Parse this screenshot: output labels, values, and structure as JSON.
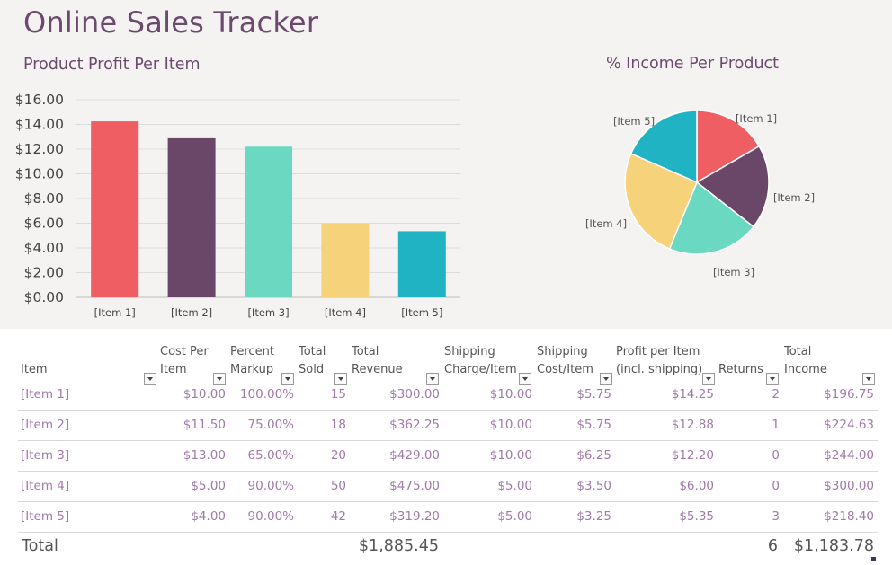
{
  "app": {
    "title": "Online Sales Tracker"
  },
  "bar_title": "Product Profit Per Item",
  "pie_title": "% Income Per Product",
  "chart_data": [
    {
      "type": "bar",
      "title": "Product Profit Per Item",
      "categories": [
        "[Item 1]",
        "[Item 2]",
        "[Item 3]",
        "[Item 4]",
        "[Item 5]"
      ],
      "values": [
        14.25,
        12.88,
        12.2,
        6.0,
        5.35
      ],
      "colors": [
        "#ef5e62",
        "#6a4768",
        "#6bd8c2",
        "#f6d27a",
        "#20b3c4"
      ],
      "ylim": [
        0,
        16
      ],
      "yticks": [
        "$0.00",
        "$2.00",
        "$4.00",
        "$6.00",
        "$8.00",
        "$10.00",
        "$12.00",
        "$14.00",
        "$16.00"
      ],
      "grid": true
    },
    {
      "type": "pie",
      "title": "% Income Per Product",
      "labels": [
        "[Item 1]",
        "[Item 2]",
        "[Item 3]",
        "[Item 4]",
        "[Item 5]"
      ],
      "values": [
        196.75,
        224.63,
        244.0,
        300.0,
        218.4
      ],
      "colors": [
        "#ef5e62",
        "#6a4768",
        "#6bd8c2",
        "#f6d27a",
        "#20b3c4"
      ]
    }
  ],
  "table": {
    "headers": [
      {
        "l1": "",
        "l2": "Item"
      },
      {
        "l1": "Cost Per",
        "l2": "Item"
      },
      {
        "l1": "Percent",
        "l2": "Markup"
      },
      {
        "l1": "Total",
        "l2": "Sold"
      },
      {
        "l1": "Total",
        "l2": "Revenue"
      },
      {
        "l1": "Shipping",
        "l2": "Charge/Item"
      },
      {
        "l1": "Shipping",
        "l2": "Cost/Item"
      },
      {
        "l1": "Profit per Item",
        "l2": "(incl. shipping)"
      },
      {
        "l1": "",
        "l2": "Returns"
      },
      {
        "l1": "Total",
        "l2": "Income"
      }
    ],
    "rows": [
      [
        "[Item 1]",
        "$10.00",
        "100.00%",
        "15",
        "$300.00",
        "$10.00",
        "$5.75",
        "$14.25",
        "2",
        "$196.75"
      ],
      [
        "[Item 2]",
        "$11.50",
        "75.00%",
        "18",
        "$362.25",
        "$10.00",
        "$5.75",
        "$12.88",
        "1",
        "$224.63"
      ],
      [
        "[Item 3]",
        "$13.00",
        "65.00%",
        "20",
        "$429.00",
        "$10.00",
        "$6.25",
        "$12.20",
        "0",
        "$244.00"
      ],
      [
        "[Item 4]",
        "$5.00",
        "90.00%",
        "50",
        "$475.00",
        "$5.00",
        "$3.50",
        "$6.00",
        "0",
        "$300.00"
      ],
      [
        "[Item 5]",
        "$4.00",
        "90.00%",
        "42",
        "$319.20",
        "$5.00",
        "$3.25",
        "$5.35",
        "3",
        "$218.40"
      ]
    ],
    "total": {
      "label": "Total",
      "revenue": "$1,885.45",
      "returns": "6",
      "income": "$1,183.78"
    }
  }
}
